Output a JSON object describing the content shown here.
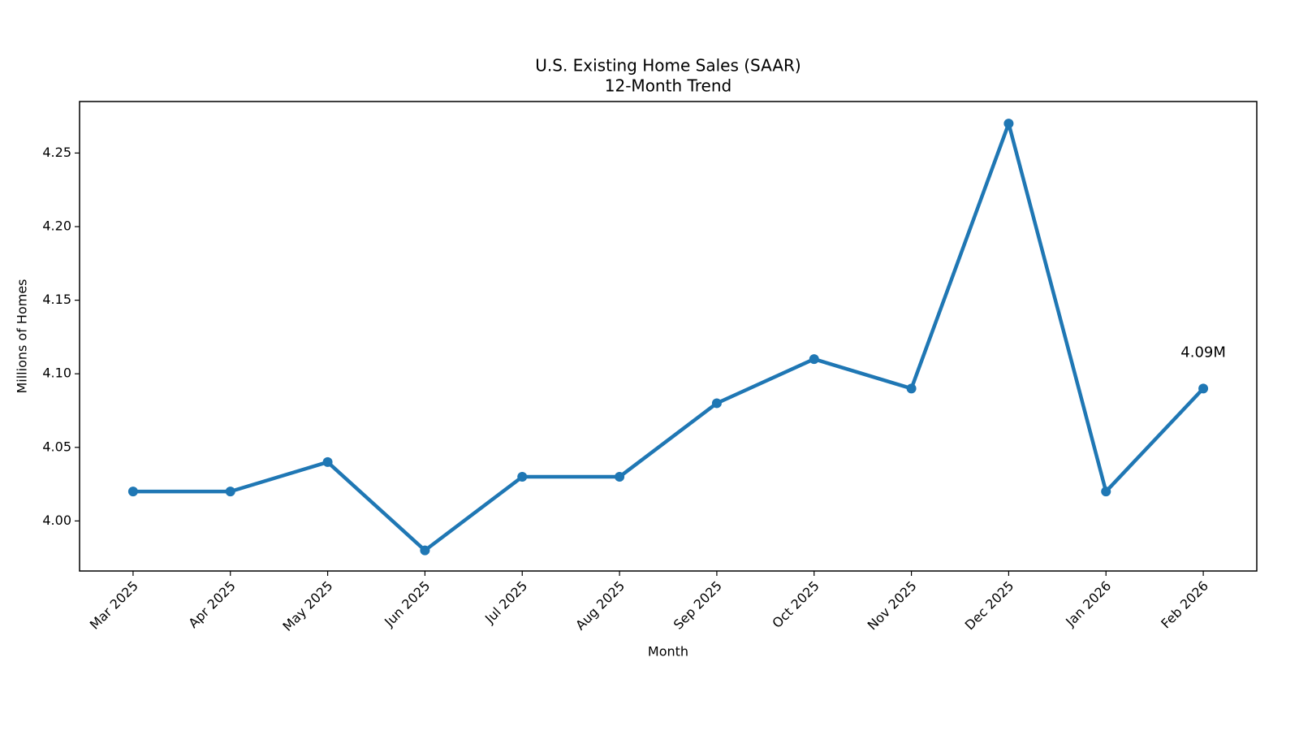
{
  "chart_data": {
    "type": "line",
    "title": "U.S. Existing Home Sales (SAAR)",
    "subtitle": "12-Month Trend",
    "x_label": "Month",
    "y_label": "Millions of Homes",
    "categories": [
      "Mar 2025",
      "Apr 2025",
      "May 2025",
      "Jun 2025",
      "Jul 2025",
      "Aug 2025",
      "Sep 2025",
      "Oct 2025",
      "Nov 2025",
      "Dec 2025",
      "Jan 2026",
      "Feb 2026"
    ],
    "values": [
      4.02,
      4.02,
      4.04,
      3.98,
      4.03,
      4.03,
      4.08,
      4.11,
      4.09,
      4.27,
      4.02,
      4.09
    ],
    "value_labels": [
      null,
      null,
      null,
      null,
      null,
      null,
      null,
      null,
      null,
      null,
      null,
      "4.09M"
    ],
    "color": "#1f77b4",
    "ylim": [
      3.966,
      4.285
    ],
    "yticks": [
      {
        "value": 4.0,
        "label": "4.00"
      },
      4.05,
      {
        "value": 4.1,
        "label": "4.10"
      },
      4.15,
      {
        "value": 4.2,
        "label": "4.20"
      },
      4.25
    ],
    "grid": false
  }
}
